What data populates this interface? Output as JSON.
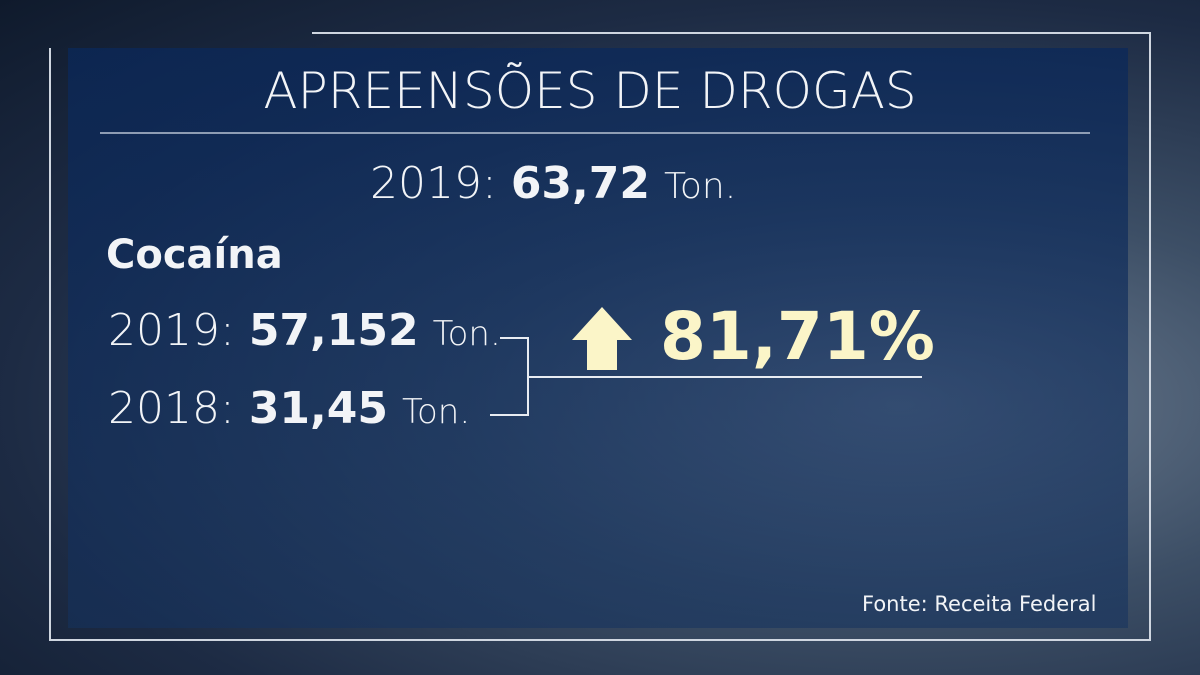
{
  "title": "APREENSÕES DE DROGAS",
  "total": {
    "year": "2019:",
    "value": "63,72",
    "unit": "Ton."
  },
  "section": {
    "label": "Cocaína",
    "rows": [
      {
        "year": "2019:",
        "value": "57,152",
        "unit": "Ton."
      },
      {
        "year": "2018:",
        "value": "31,45",
        "unit": "Ton."
      }
    ],
    "change": "81,71%"
  },
  "source": "Fonte: Receita Federal"
}
